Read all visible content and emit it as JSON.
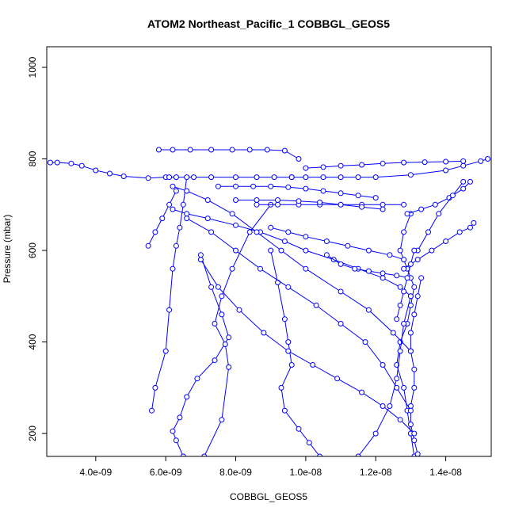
{
  "chart_data": {
    "type": "line",
    "title": "ATOM2 Northeast_Pacific_1 COBBGL_GEOS5",
    "xlabel": "COBBGL_GEOS5",
    "ylabel": "Pressure (mbar)",
    "xlim": [
      2.6e-09,
      1.53e-08
    ],
    "ylim": [
      1045,
      150
    ],
    "y_inverted": true,
    "grid": false,
    "legend": "none",
    "color": "#0000ff",
    "marker": "open-circle",
    "x_ticks": [
      {
        "value": 4e-09,
        "label": "4.0e-09"
      },
      {
        "value": 6e-09,
        "label": "6.0e-09"
      },
      {
        "value": 8e-09,
        "label": "8.0e-09"
      },
      {
        "value": 1e-08,
        "label": "1.0e-08"
      },
      {
        "value": 1.2e-08,
        "label": "1.2e-08"
      },
      {
        "value": 1.4e-08,
        "label": "1.4e-08"
      }
    ],
    "y_ticks": [
      {
        "value": 200,
        "label": "200"
      },
      {
        "value": 400,
        "label": "400"
      },
      {
        "value": 600,
        "label": "600"
      },
      {
        "value": 800,
        "label": "800"
      },
      {
        "value": 1000,
        "label": "1000"
      }
    ],
    "series": [
      {
        "x": [
          2.7e-09,
          2.9e-09,
          3.3e-09,
          3.6e-09,
          4e-09,
          4.4e-09,
          4.8e-09,
          5.5e-09,
          6e-09
        ],
        "y": [
          792,
          792,
          790,
          785,
          775,
          768,
          762,
          758,
          760
        ]
      },
      {
        "x": [
          6.1e-09,
          6.3e-09,
          6.8e-09,
          7.3e-09,
          8e-09,
          8.6e-09,
          9.1e-09,
          9.6e-09
        ],
        "y": [
          760,
          760,
          760,
          760,
          760,
          760,
          760,
          760
        ]
      },
      {
        "x": [
          5.8e-09,
          6.2e-09,
          6.7e-09,
          7.3e-09,
          7.9e-09,
          8.4e-09,
          8.9e-09,
          9.4e-09,
          9.8e-09
        ],
        "y": [
          820,
          820,
          820,
          820,
          820,
          820,
          820,
          818,
          800
        ]
      },
      {
        "x": [
          9.6e-09,
          1e-08,
          1.05e-08,
          1.1e-08,
          1.15e-08,
          1.2e-08,
          1.3e-08,
          1.4e-08,
          1.45e-08,
          1.5e-08,
          1.52e-08
        ],
        "y": [
          760,
          760,
          760,
          760,
          760,
          760,
          765,
          775,
          785,
          795,
          800
        ]
      },
      {
        "x": [
          5.6e-09,
          5.7e-09,
          6e-09,
          6.1e-09,
          6.2e-09,
          6.3e-09,
          6.4e-09,
          6.5e-09,
          6.6e-09
        ],
        "y": [
          250,
          300,
          380,
          470,
          560,
          610,
          650,
          700,
          760
        ]
      },
      {
        "x": [
          6.5e-09,
          6.3e-09,
          6.2e-09,
          6.4e-09,
          6.6e-09,
          6.9e-09,
          7.4e-09,
          7.8e-09,
          7.6e-09,
          7.3e-09,
          7e-09
        ],
        "y": [
          150,
          185,
          205,
          235,
          280,
          320,
          360,
          410,
          460,
          520,
          590
        ]
      },
      {
        "x": [
          7.1e-09,
          7.6e-09,
          7.8e-09,
          7.7e-09,
          7.4e-09,
          7.6e-09,
          7.9e-09,
          8.4e-09,
          9e-09
        ],
        "y": [
          150,
          230,
          345,
          395,
          440,
          500,
          560,
          640,
          700
        ]
      },
      {
        "x": [
          1.04e-08,
          1.01e-08,
          9.8e-09,
          9.4e-09,
          9.3e-09,
          9.6e-09,
          9.5e-09,
          9.4e-09,
          9.2e-09,
          9e-09
        ],
        "y": [
          150,
          180,
          210,
          250,
          300,
          350,
          400,
          450,
          530,
          600
        ]
      },
      {
        "x": [
          1.31e-08,
          1.3e-08,
          1.29e-08,
          1.28e-08,
          1.26e-08,
          1.27e-08,
          1.29e-08,
          1.3e-08,
          1.31e-08,
          1.29e-08,
          1.27e-08,
          1.28e-08,
          1.3e-08
        ],
        "y": [
          150,
          200,
          250,
          300,
          350,
          400,
          440,
          480,
          520,
          560,
          600,
          640,
          680
        ]
      },
      {
        "x": [
          1.32e-08,
          1.31e-08,
          1.3e-08,
          1.3e-08,
          1.31e-08,
          1.31e-08,
          1.3e-08,
          1.3e-08,
          1.31e-08,
          1.32e-08,
          1.33e-08
        ],
        "y": [
          155,
          185,
          220,
          260,
          300,
          340,
          380,
          420,
          460,
          500,
          540
        ]
      },
      {
        "x": [
          1.15e-08,
          1.2e-08,
          1.24e-08,
          1.26e-08,
          1.27e-08,
          1.28e-08,
          1.3e-08
        ],
        "y": [
          150,
          200,
          260,
          320,
          380,
          440,
          500
        ]
      },
      {
        "x": [
          6.2e-09,
          6.6e-09,
          7.2e-09,
          8e-09,
          8.7e-09,
          9.4e-09,
          1e-08,
          1.08e-08,
          1.15e-08,
          1.22e-08,
          1.27e-08,
          1.3e-08
        ],
        "y": [
          690,
          680,
          670,
          655,
          640,
          620,
          600,
          580,
          560,
          540,
          520,
          500
        ]
      },
      {
        "x": [
          1.3e-08,
          1.25e-08,
          1.18e-08,
          1.1e-08,
          1e-08,
          9.3e-09,
          8.6e-09,
          7.9e-09,
          7.2e-09,
          6.6e-09,
          6.2e-09
        ],
        "y": [
          380,
          420,
          470,
          510,
          560,
          600,
          640,
          680,
          710,
          730,
          740
        ]
      },
      {
        "x": [
          1.3e-08,
          1.26e-08,
          1.22e-08,
          1.17e-08,
          1.1e-08,
          1.03e-08,
          9.5e-09,
          8.7e-09,
          8e-09,
          7.3e-09,
          6.6e-09
        ],
        "y": [
          250,
          300,
          350,
          400,
          440,
          480,
          520,
          560,
          600,
          640,
          670
        ]
      },
      {
        "x": [
          1.31e-08,
          1.27e-08,
          1.22e-08,
          1.16e-08,
          1.09e-08,
          1.02e-08,
          9.5e-09,
          8.8e-09,
          8.1e-09,
          7.5e-09,
          7e-09
        ],
        "y": [
          200,
          230,
          260,
          290,
          320,
          350,
          380,
          420,
          470,
          520,
          580
        ]
      },
      {
        "x": [
          8.6e-09,
          9.2e-09,
          9.8e-09,
          1.04e-08,
          1.1e-08,
          1.16e-08,
          1.22e-08,
          1.28e-08
        ],
        "y": [
          700,
          700,
          700,
          700,
          700,
          700,
          700,
          700
        ]
      },
      {
        "x": [
          7.5e-09,
          8e-09,
          8.5e-09,
          9e-09,
          9.5e-09,
          1e-08,
          1.05e-08,
          1.1e-08,
          1.15e-08,
          1.2e-08
        ],
        "y": [
          740,
          740,
          740,
          740,
          738,
          735,
          730,
          725,
          720,
          715
        ]
      },
      {
        "x": [
          8e-09,
          8.6e-09,
          9.2e-09,
          9.8e-09,
          1.04e-08,
          1.1e-08,
          1.16e-08,
          1.22e-08
        ],
        "y": [
          710,
          710,
          710,
          708,
          705,
          700,
          695,
          690
        ]
      },
      {
        "x": [
          1.28e-08,
          1.32e-08,
          1.36e-08,
          1.4e-08,
          1.44e-08,
          1.47e-08,
          1.48e-08
        ],
        "y": [
          560,
          580,
          600,
          620,
          640,
          650,
          660
        ]
      },
      {
        "x": [
          1.29e-08,
          1.33e-08,
          1.37e-08,
          1.41e-08,
          1.45e-08,
          1.47e-08
        ],
        "y": [
          680,
          690,
          700,
          715,
          735,
          750
        ]
      },
      {
        "x": [
          1.32e-08,
          1.35e-08,
          1.38e-08,
          1.42e-08,
          1.45e-08
        ],
        "y": [
          600,
          640,
          680,
          720,
          750
        ]
      },
      {
        "x": [
          1e-08,
          1.05e-08,
          1.1e-08,
          1.16e-08,
          1.22e-08,
          1.28e-08,
          1.34e-08,
          1.4e-08,
          1.45e-08
        ],
        "y": [
          780,
          782,
          785,
          787,
          790,
          792,
          793,
          794,
          795
        ]
      },
      {
        "x": [
          1.06e-08,
          1.1e-08,
          1.14e-08,
          1.18e-08,
          1.22e-08,
          1.26e-08,
          1.3e-08
        ],
        "y": [
          590,
          570,
          560,
          555,
          550,
          545,
          540
        ]
      },
      {
        "x": [
          9e-09,
          9.5e-09,
          1e-08,
          1.06e-08,
          1.12e-08,
          1.18e-08,
          1.24e-08,
          1.28e-08
        ],
        "y": [
          650,
          640,
          630,
          620,
          610,
          600,
          590,
          580
        ]
      },
      {
        "x": [
          1.26e-08,
          1.27e-08,
          1.28e-08,
          1.29e-08,
          1.3e-08,
          1.31e-08
        ],
        "y": [
          450,
          480,
          510,
          540,
          570,
          600
        ]
      },
      {
        "x": [
          5.5e-09,
          5.7e-09,
          5.9e-09,
          6.1e-09,
          6.3e-09
        ],
        "y": [
          610,
          640,
          670,
          700,
          730
        ]
      }
    ]
  }
}
